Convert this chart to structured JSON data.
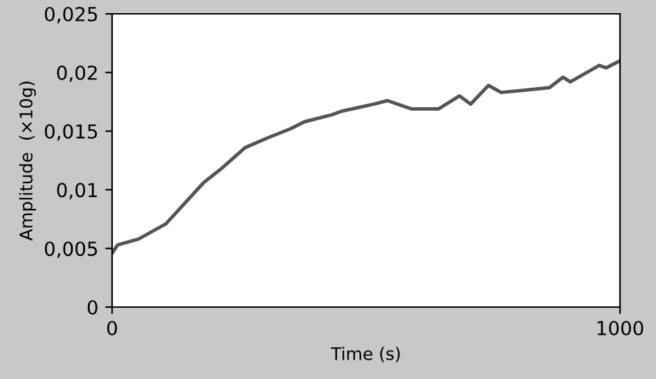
{
  "chart_data": {
    "type": "line",
    "xlabel": "Time (s)",
    "ylabel": "Amplitude  (×10g)",
    "x": [
      0,
      11,
      52,
      106,
      142,
      180,
      215,
      262,
      305,
      351,
      379,
      433,
      452,
      515,
      542,
      589,
      643,
      684,
      706,
      741,
      766,
      815,
      861,
      888,
      902,
      959,
      973,
      1000
    ],
    "series": [
      {
        "color": "#555555",
        "values": [
          0.0046,
          0.0053,
          0.0058,
          0.0071,
          0.0088,
          0.0106,
          0.0118,
          0.0136,
          0.0144,
          0.0152,
          0.0158,
          0.0164,
          0.0167,
          0.0173,
          0.0176,
          0.0169,
          0.0169,
          0.018,
          0.0173,
          0.0189,
          0.0183,
          0.0185,
          0.0187,
          0.0196,
          0.0192,
          0.0206,
          0.0204,
          0.021
        ]
      }
    ],
    "xlim": [
      0,
      1000
    ],
    "xticks": [
      0,
      1000
    ],
    "ylim": [
      0,
      0.025
    ],
    "yticks": [
      0,
      {
        "value": 0.005,
        "label": "0,005"
      },
      {
        "value": 0.01,
        "label": "0,01"
      },
      {
        "value": 0.015,
        "label": "0,015"
      },
      {
        "value": 0.02,
        "label": "0,02"
      },
      {
        "value": 0.025,
        "label": "0,025"
      }
    ],
    "grid": false,
    "legend": false,
    "marker": "none",
    "line_style": "solid"
  }
}
